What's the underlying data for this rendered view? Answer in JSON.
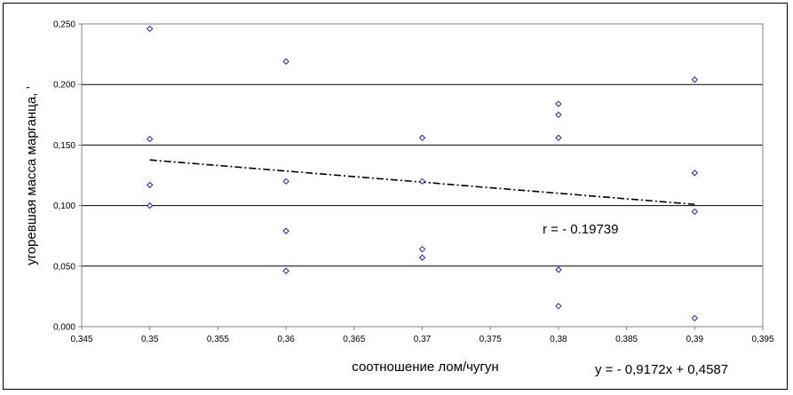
{
  "chart_data": {
    "type": "scatter",
    "title": "",
    "xlabel": "соотношение лом/чугун",
    "ylabel": "угоревшая масса марганца, ’",
    "xlim": [
      0.345,
      0.395
    ],
    "ylim": [
      0.0,
      0.25
    ],
    "x_ticks": [
      "0,345",
      "0,35",
      "0,355",
      "0,36",
      "0,365",
      "0,37",
      "0,375",
      "0,38",
      "0,385",
      "0,39",
      "0,395"
    ],
    "y_ticks": [
      "0,000",
      "0,050",
      "0,100",
      "0,150",
      "0,200",
      "0,250"
    ],
    "grid": "horizontal",
    "legend": "none",
    "marker_color": "#1f1fb4",
    "series": [
      {
        "points": [
          {
            "x": 0.35,
            "y": 0.246
          },
          {
            "x": 0.35,
            "y": 0.155
          },
          {
            "x": 0.35,
            "y": 0.117
          },
          {
            "x": 0.35,
            "y": 0.1
          },
          {
            "x": 0.36,
            "y": 0.219
          },
          {
            "x": 0.36,
            "y": 0.12
          },
          {
            "x": 0.36,
            "y": 0.079
          },
          {
            "x": 0.36,
            "y": 0.046
          },
          {
            "x": 0.37,
            "y": 0.156
          },
          {
            "x": 0.37,
            "y": 0.12
          },
          {
            "x": 0.37,
            "y": 0.064
          },
          {
            "x": 0.37,
            "y": 0.057
          },
          {
            "x": 0.38,
            "y": 0.184
          },
          {
            "x": 0.38,
            "y": 0.175
          },
          {
            "x": 0.38,
            "y": 0.156
          },
          {
            "x": 0.38,
            "y": 0.047
          },
          {
            "x": 0.38,
            "y": 0.017
          },
          {
            "x": 0.39,
            "y": 0.204
          },
          {
            "x": 0.39,
            "y": 0.127
          },
          {
            "x": 0.39,
            "y": 0.095
          },
          {
            "x": 0.39,
            "y": 0.007
          }
        ]
      }
    ],
    "trendline": {
      "slope": -0.9172,
      "intercept": 0.4587,
      "x_range": [
        0.35,
        0.39
      ],
      "equation_text": "y = - 0,9172x + 0,4587"
    },
    "correlation_text": "r = - 0.19739"
  }
}
